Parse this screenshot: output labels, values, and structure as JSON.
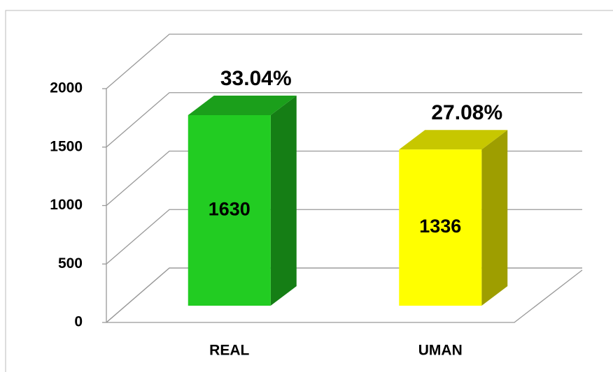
{
  "chart_data": {
    "type": "bar3d",
    "categories": [
      "REAL",
      "UMAN"
    ],
    "values": [
      1630,
      1336
    ],
    "annotations": [
      "33.04%",
      "27.08%"
    ],
    "colors": [
      "#22cc22",
      "#ffff00"
    ],
    "ylim": [
      0,
      2000
    ],
    "yticks": [
      0,
      500,
      1000,
      1500,
      2000
    ],
    "grid": true
  }
}
